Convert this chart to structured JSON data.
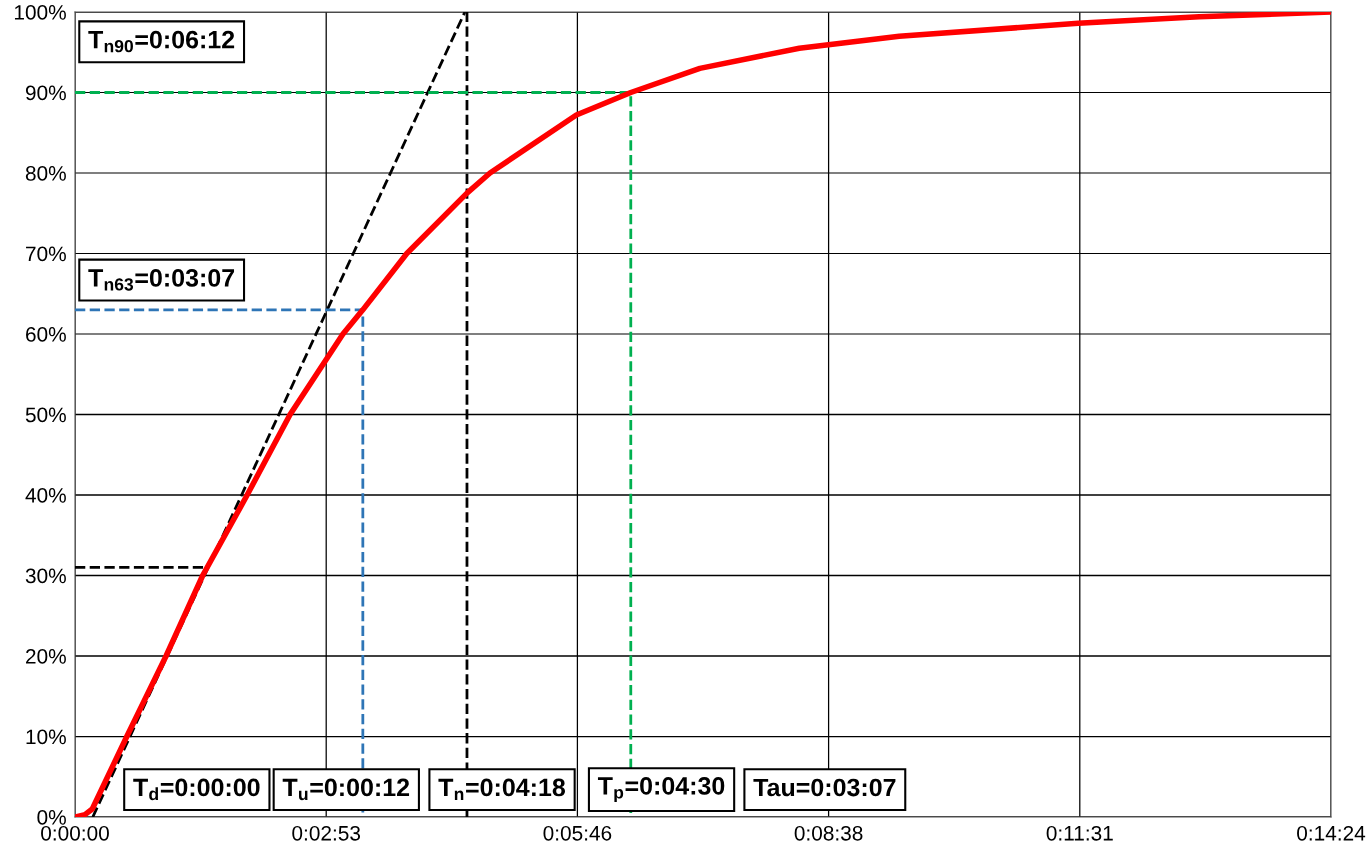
{
  "chart_data": {
    "type": "line",
    "xlim": [
      0,
      0.24
    ],
    "ylim": [
      0,
      100
    ],
    "xticks": [
      {
        "value": 0,
        "label": "0:00:00"
      },
      {
        "value": 0.048,
        "label": "0:02:53"
      },
      {
        "value": 0.096,
        "label": "0:05:46"
      },
      {
        "value": 0.144,
        "label": "0:08:38"
      },
      {
        "value": 0.192,
        "label": "0:11:31"
      },
      {
        "value": 0.24,
        "label": "0:14:24"
      }
    ],
    "yticks": [
      {
        "value": 0,
        "label": "0%"
      },
      {
        "value": 10,
        "label": "10%"
      },
      {
        "value": 20,
        "label": "20%"
      },
      {
        "value": 30,
        "label": "30%"
      },
      {
        "value": 40,
        "label": "40%"
      },
      {
        "value": 50,
        "label": "50%"
      },
      {
        "value": 60,
        "label": "60%"
      },
      {
        "value": 70,
        "label": "70%"
      },
      {
        "value": 80,
        "label": "80%"
      },
      {
        "value": 90,
        "label": "90%"
      },
      {
        "value": 100,
        "label": "100%"
      }
    ],
    "grid": true,
    "marker": "none",
    "series": [
      {
        "color": "#000000",
        "line_style": "dashed",
        "x": [
          0.0034,
          0.0745
        ],
        "values": [
          0,
          100
        ]
      },
      {
        "color": "#000000",
        "line_style": "dashed",
        "x": [
          0,
          0.0248
        ],
        "values": [
          31,
          31
        ]
      },
      {
        "color": "#000000",
        "line_style": "dashed",
        "x": [
          0.0749,
          0.0749
        ],
        "values": [
          0,
          100
        ]
      },
      {
        "color": "#2e75b6",
        "line_style": "dashed",
        "x": [
          0,
          0.055,
          0.055
        ],
        "values": [
          63,
          63,
          0
        ]
      },
      {
        "color": "#00b050",
        "line_style": "dashed",
        "x": [
          0,
          0.1062,
          0.1062
        ],
        "values": [
          90,
          90,
          0
        ]
      },
      {
        "color": "#ff0000",
        "line_style": "solid",
        "x": [
          0,
          0.0019,
          0.0033,
          0.0099,
          0.0174,
          0.0244,
          0.0329,
          0.0411,
          0.0512,
          0.055,
          0.0634,
          0.0749,
          0.0793,
          0.0958,
          0.1062,
          0.1194,
          0.1384,
          0.1575,
          0.1917,
          0.2148,
          0.24
        ],
        "values": [
          0,
          0.3,
          1,
          10,
          20,
          30,
          40,
          50,
          60,
          63,
          70,
          77.5,
          80,
          87.2,
          90,
          93,
          95.5,
          97,
          98.6,
          99.4,
          100
        ]
      }
    ],
    "annotations": [
      "T$_{d}$=0:00:00",
      "T$_{u}$=0:00:12",
      "T$_{n}$=0:04:18",
      "T$_{p}$=0:04:30",
      "Tau=0:03:07",
      "T$_{n90}$=0:06:12",
      "T$_{n63}$=0:03:07"
    ]
  }
}
